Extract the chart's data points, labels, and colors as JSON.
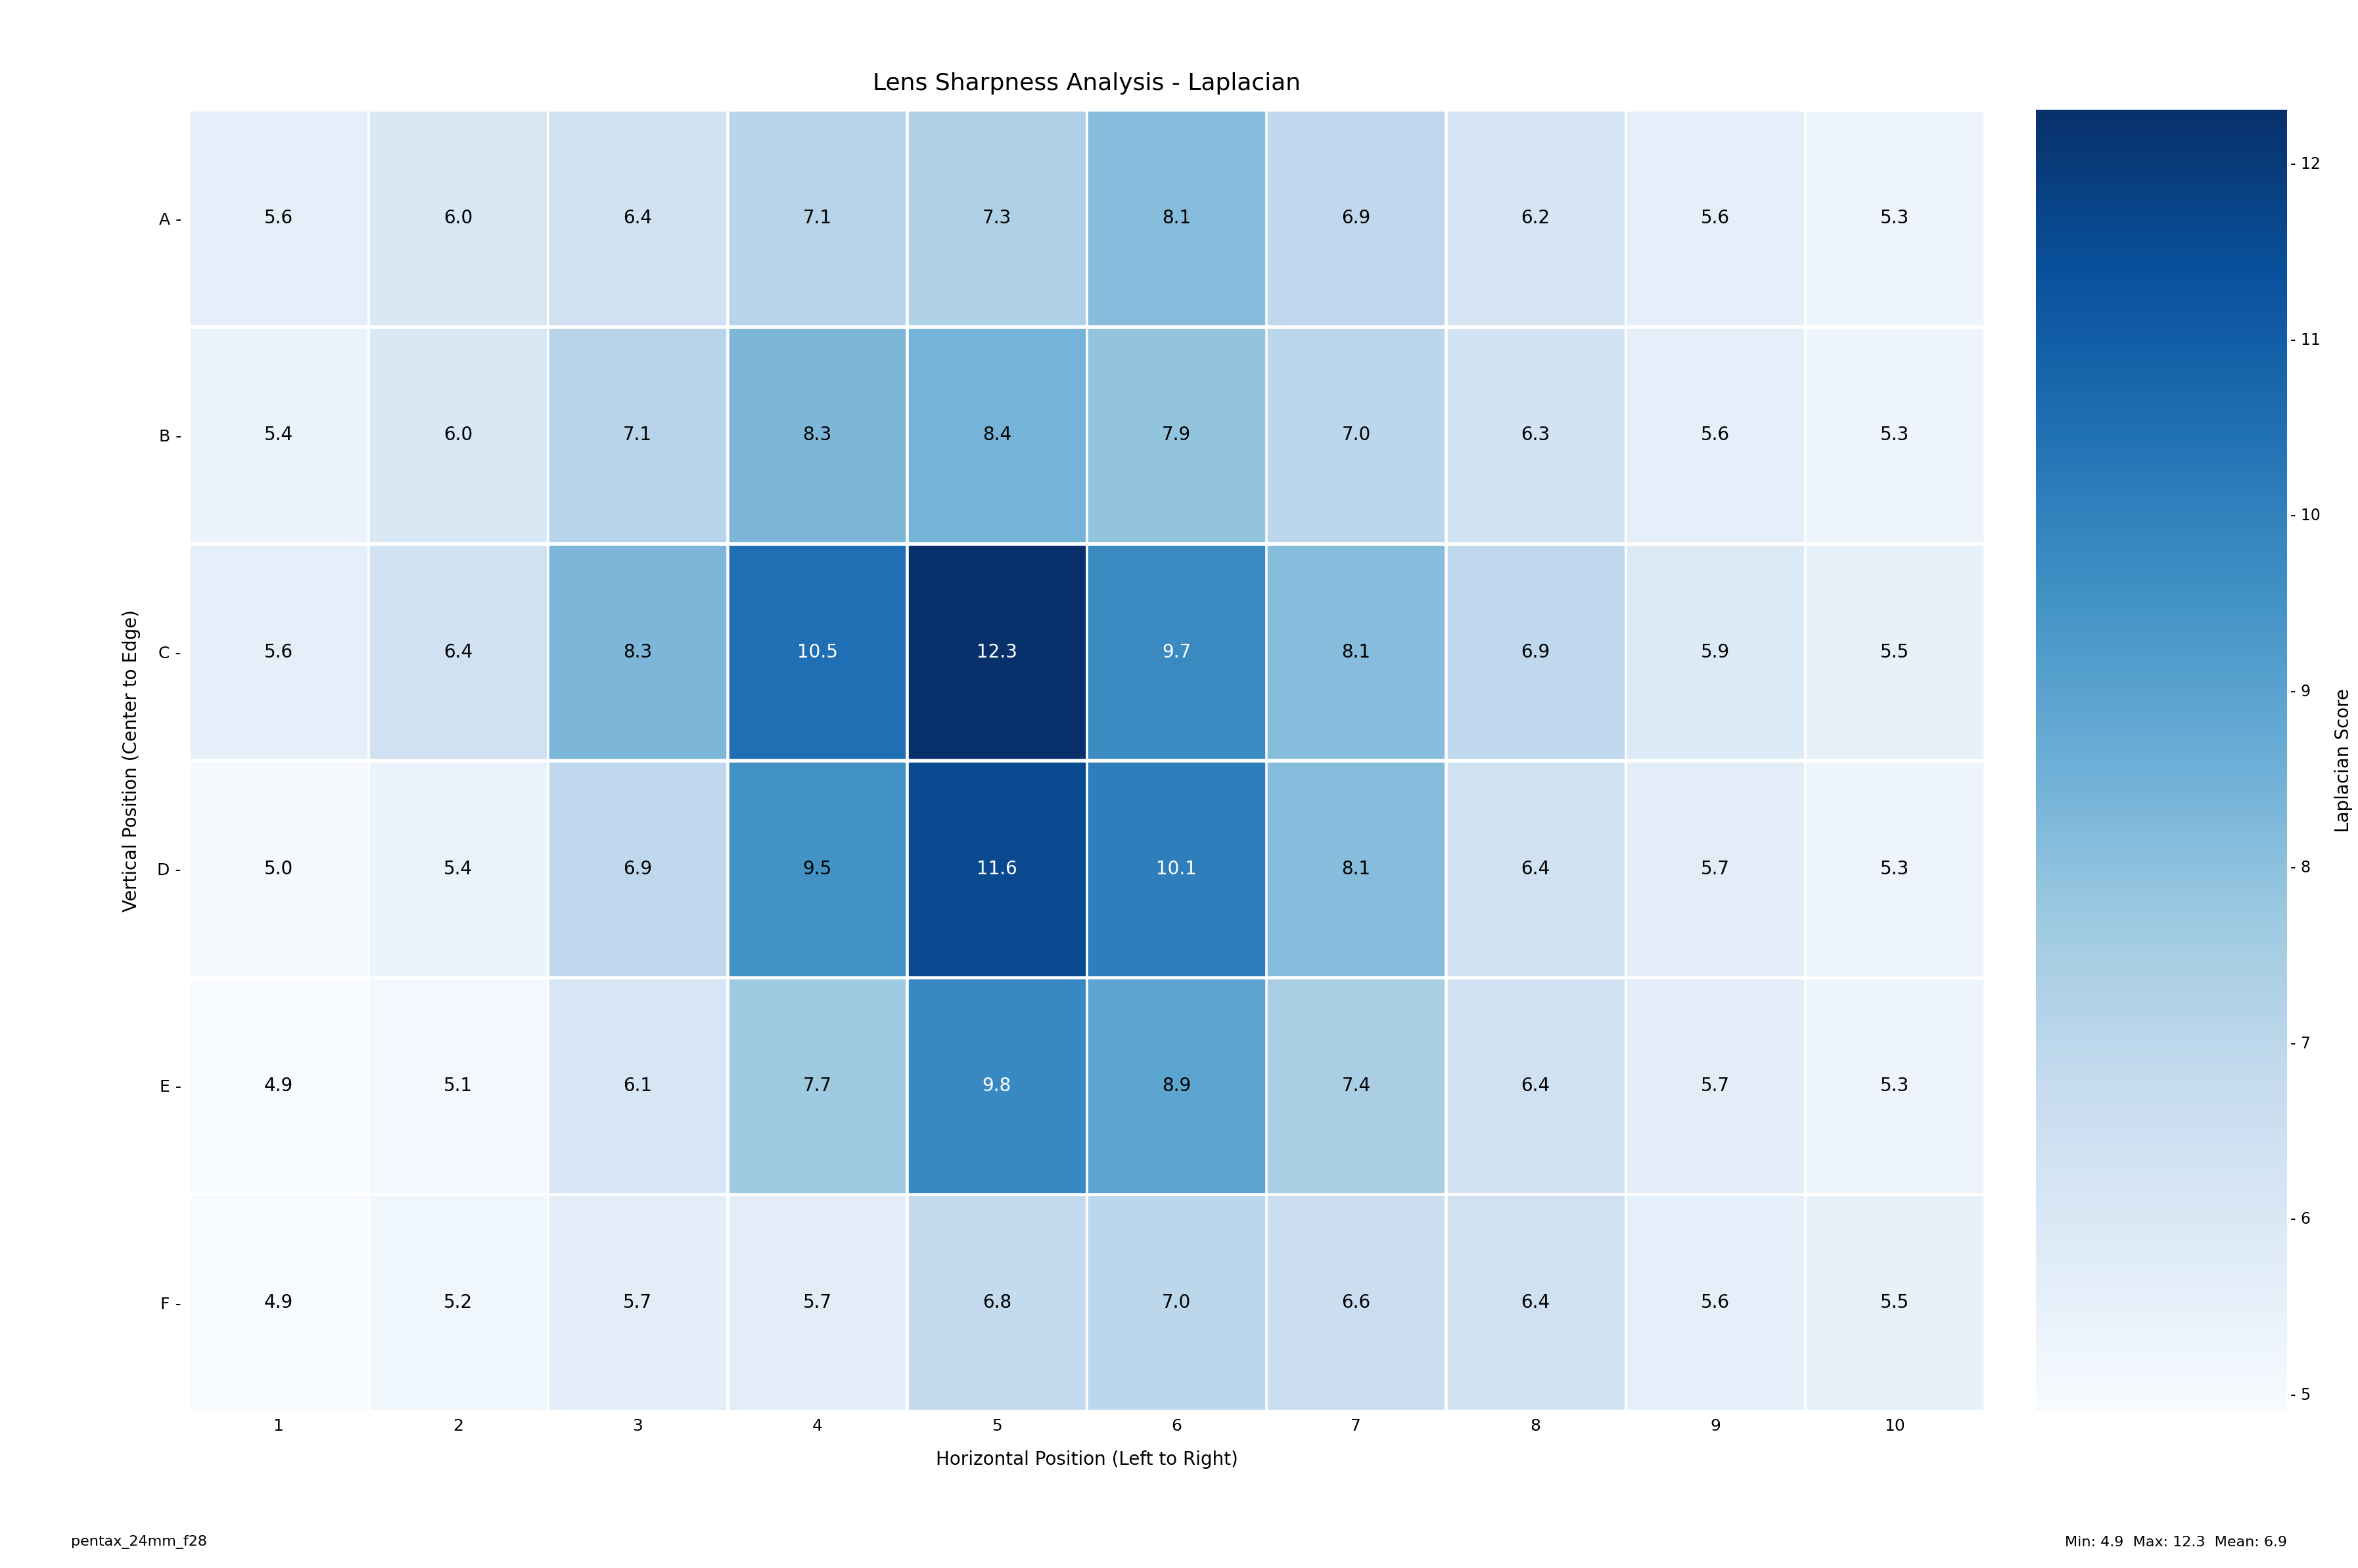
{
  "title": "Lens Sharpness Analysis - Laplacian",
  "xlabel": "Horizontal Position (Left to Right)",
  "ylabel": "Vertical Position (Center to Edge)",
  "colorbar_label": "Laplacian Score",
  "row_labels": [
    "A -",
    "B -",
    "C -",
    "D -",
    "E -",
    "F -"
  ],
  "col_labels": [
    "1",
    "2",
    "3",
    "4",
    "5",
    "6",
    "7",
    "8",
    "9",
    "10"
  ],
  "data": [
    [
      5.6,
      6.0,
      6.4,
      7.1,
      7.3,
      8.1,
      6.9,
      6.2,
      5.6,
      5.3
    ],
    [
      5.4,
      6.0,
      7.1,
      8.3,
      8.4,
      7.9,
      7.0,
      6.3,
      5.6,
      5.3
    ],
    [
      5.6,
      6.4,
      8.3,
      10.5,
      12.3,
      9.7,
      8.1,
      6.9,
      5.9,
      5.5
    ],
    [
      5.0,
      5.4,
      6.9,
      9.5,
      11.6,
      10.1,
      8.1,
      6.4,
      5.7,
      5.3
    ],
    [
      4.9,
      5.1,
      6.1,
      7.7,
      9.8,
      8.9,
      7.4,
      6.4,
      5.7,
      5.3
    ],
    [
      4.9,
      5.2,
      5.7,
      5.7,
      6.8,
      7.0,
      6.6,
      6.4,
      5.6,
      5.5
    ]
  ],
  "vmin": 4.9,
  "vmax": 12.3,
  "cmap": "Blues",
  "footnote_left": "pentax_24mm_f28",
  "footnote_right": "Min: 4.9  Max: 12.3  Mean: 6.9",
  "background_color": "#ffffff",
  "title_fontsize": 26,
  "label_fontsize": 20,
  "tick_fontsize": 18,
  "cell_fontsize": 20,
  "colorbar_tick_fontsize": 17,
  "colorbar_label_fontsize": 20,
  "footnote_fontsize": 16,
  "white_text_threshold": 0.5
}
